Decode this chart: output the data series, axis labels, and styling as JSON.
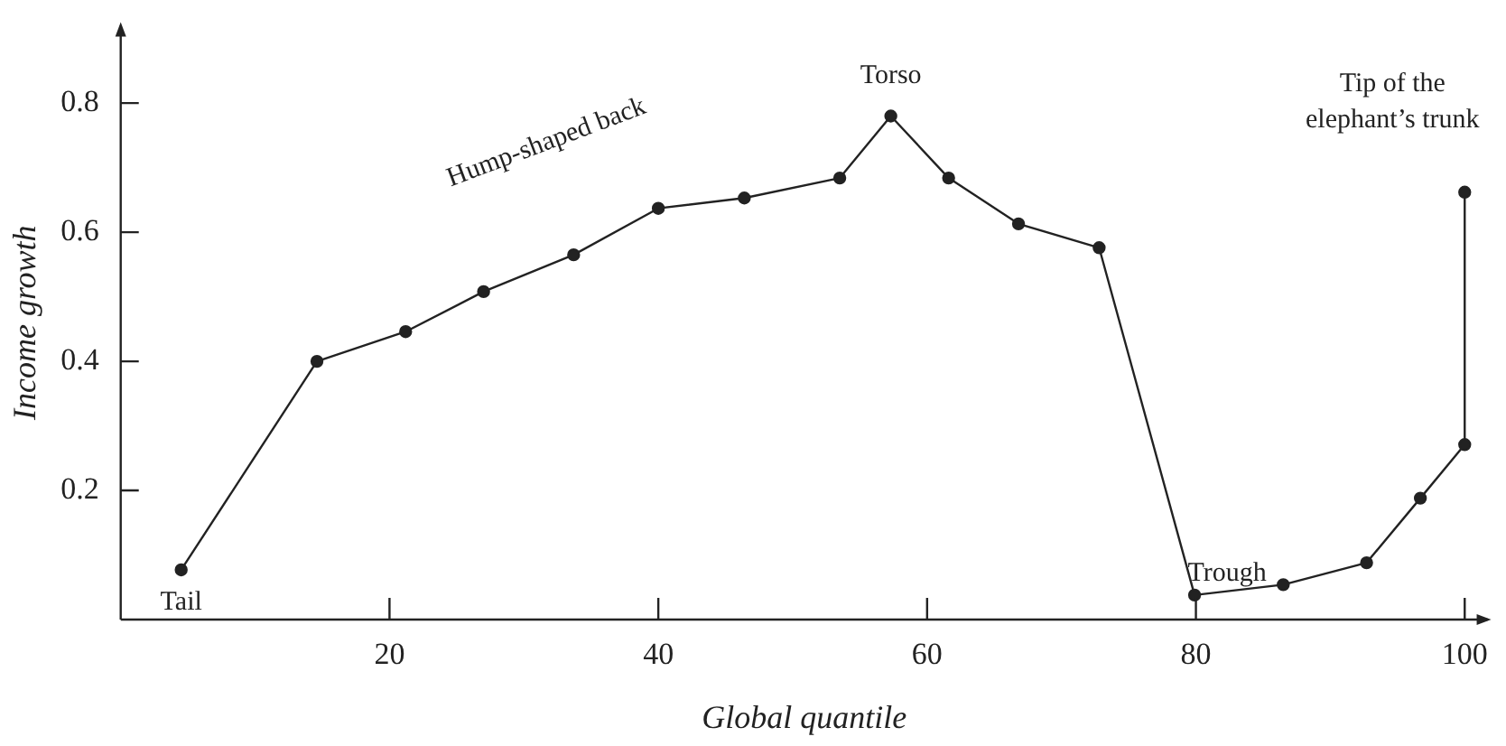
{
  "chart_data": {
    "type": "line",
    "xlabel": "Global quantile",
    "ylabel": "Income growth",
    "x": [
      4.5,
      14.6,
      21.2,
      27.0,
      33.7,
      40.0,
      46.4,
      53.5,
      57.3,
      61.6,
      66.8,
      72.8,
      79.9,
      86.5,
      92.7,
      96.7,
      100,
      100
    ],
    "values": [
      0.077,
      0.4,
      0.446,
      0.508,
      0.565,
      0.637,
      0.653,
      0.684,
      0.78,
      0.684,
      0.613,
      0.576,
      0.038,
      0.054,
      0.088,
      0.188,
      0.271,
      0.662
    ],
    "color": "#222222",
    "marker": "circle",
    "line_style": "solid",
    "grid": false,
    "legend": false,
    "xlim": [
      0,
      101.7
    ],
    "ylim": [
      0,
      0.92
    ],
    "xticks": [
      20,
      40,
      60,
      80,
      100
    ],
    "yticks": [
      0.2,
      0.4,
      0.6,
      0.8
    ],
    "annotations": [
      {
        "text": "Tail",
        "x": 4.5,
        "y": 0.077
      },
      {
        "text": "Hump-shaped back",
        "x": 33.7,
        "y": 0.565
      },
      {
        "text": "Torso",
        "x": 57.3,
        "y": 0.78
      },
      {
        "text": "Trough",
        "x": 79.9,
        "y": 0.038
      },
      {
        "text": "Tip of the\nelephant’s trunk",
        "x": 100,
        "y": 0.662
      }
    ]
  }
}
